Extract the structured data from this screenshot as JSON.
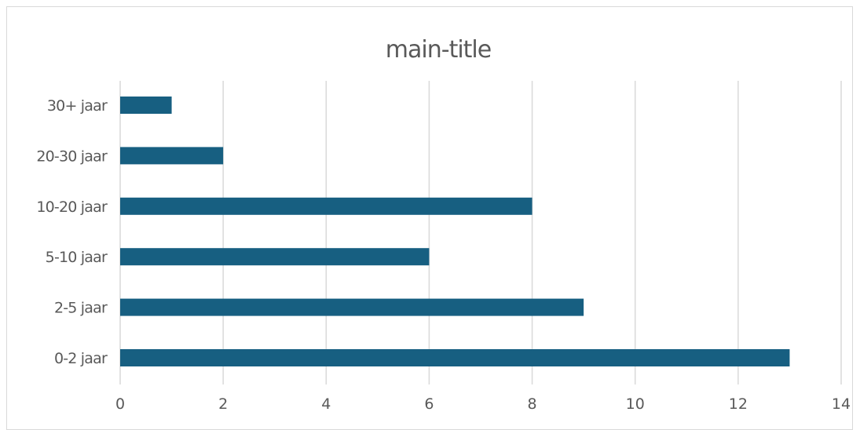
{
  "chart_data": {
    "type": "bar",
    "orientation": "horizontal",
    "title": "main-title",
    "categories": [
      "0-2 jaar",
      "2-5 jaar",
      "5-10 jaar",
      "10-20 jaar",
      "20-30 jaar",
      "30+ jaar"
    ],
    "values": [
      13,
      9,
      6,
      8,
      2,
      1
    ],
    "xlim": [
      0,
      14
    ],
    "xticks": [
      "0",
      "2",
      "4",
      "6",
      "8",
      "10",
      "12",
      "14"
    ],
    "grid": "vertical",
    "legend": "none",
    "bar_color": "#175f81"
  }
}
